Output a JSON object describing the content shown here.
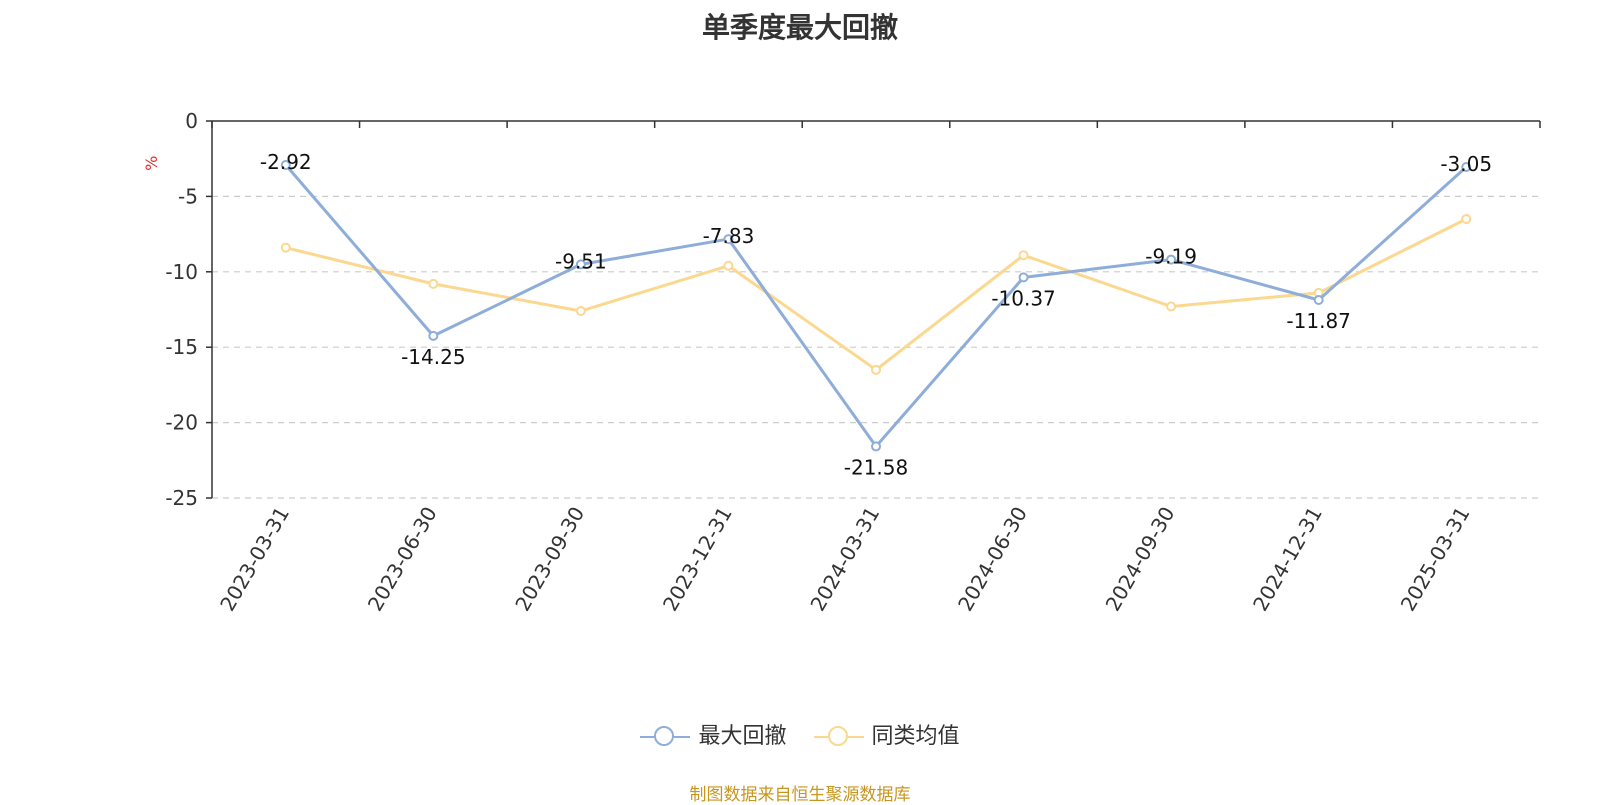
{
  "chart_data": {
    "type": "line",
    "title": "单季度最大回撤",
    "ylabel": "%",
    "xlabel": "",
    "categories": [
      "2023-03-31",
      "2023-06-30",
      "2023-09-30",
      "2023-12-31",
      "2024-03-31",
      "2024-06-30",
      "2024-09-30",
      "2024-12-31",
      "2025-03-31"
    ],
    "yticks": [
      "0",
      "-5",
      "-10",
      "-15",
      "-20",
      "-25"
    ],
    "ylim": [
      -25,
      0
    ],
    "grid": true,
    "legend_position": "bottom",
    "series": [
      {
        "name": "最大回撤",
        "color": "#8eadd9",
        "values": [
          -2.92,
          -14.25,
          -9.51,
          -7.83,
          -21.58,
          -10.37,
          -9.19,
          -11.87,
          -3.05
        ],
        "labels": [
          "-2.92",
          "-14.25",
          "-9.51",
          "-7.83",
          "-21.58",
          "-10.37",
          "-9.19",
          "-11.87",
          "-3.05"
        ]
      },
      {
        "name": "同类均值",
        "color": "#fbd88f",
        "values": [
          -8.4,
          -10.8,
          -12.6,
          -9.6,
          -16.5,
          -8.9,
          -12.3,
          -11.4,
          -6.5
        ]
      }
    ]
  },
  "source_note": "制图数据来自恒生聚源数据库"
}
